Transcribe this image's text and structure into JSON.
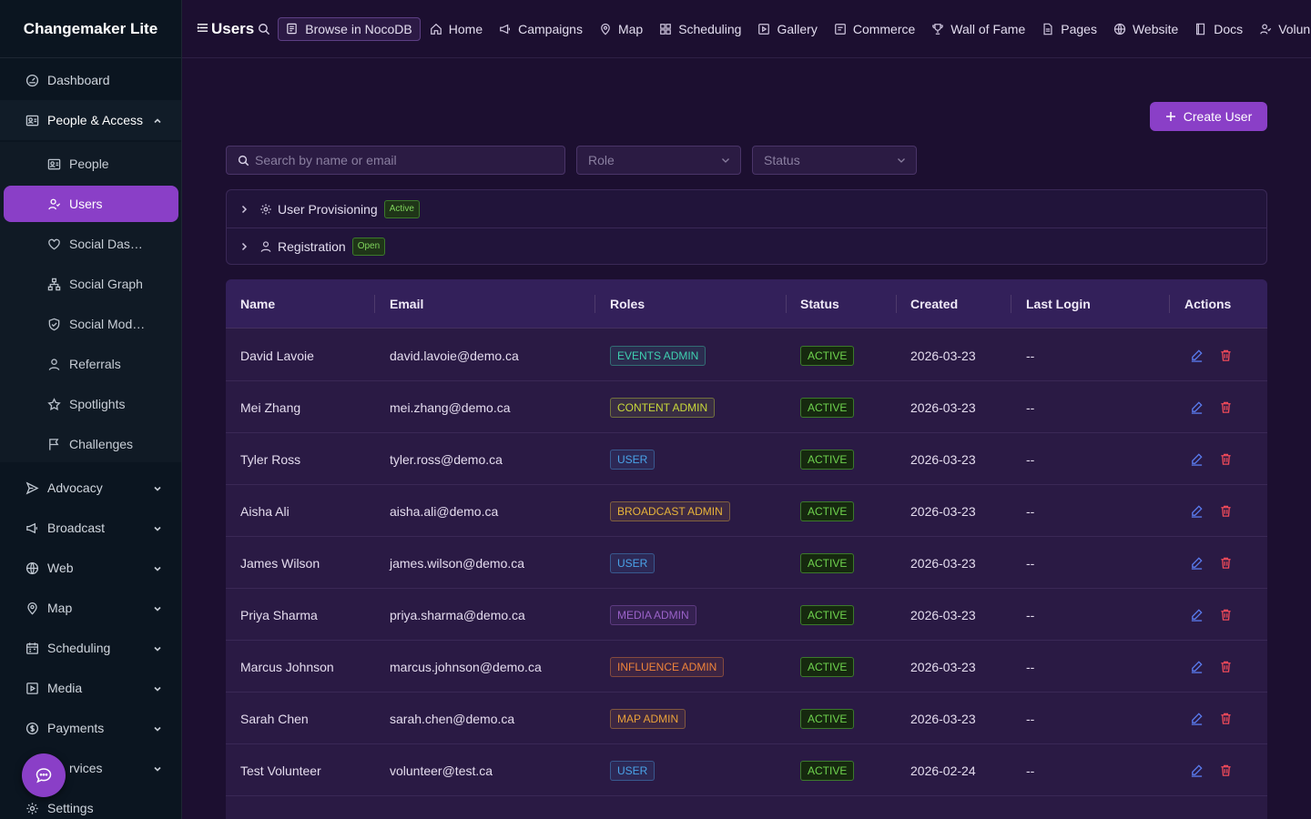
{
  "sidebar": {
    "brand": "Changemaker Lite",
    "top_items": [
      {
        "label": "Dashboard",
        "icon": "dashboard-icon"
      },
      {
        "label": "People & Access",
        "icon": "contacts-icon"
      }
    ],
    "sub_items": [
      {
        "label": "People",
        "icon": "contacts-icon"
      },
      {
        "label": "Users",
        "icon": "user-icon"
      },
      {
        "label": "Social Das…",
        "icon": "heart-icon"
      },
      {
        "label": "Social Graph",
        "icon": "graph-icon"
      },
      {
        "label": "Social Mod…",
        "icon": "shield-check-icon"
      },
      {
        "label": "Referrals",
        "icon": "user-icon"
      },
      {
        "label": "Spotlights",
        "icon": "star-icon"
      },
      {
        "label": "Challenges",
        "icon": "flag-icon"
      }
    ],
    "groups": [
      {
        "label": "Advocacy",
        "icon": "send-icon"
      },
      {
        "label": "Broadcast",
        "icon": "megaphone-icon"
      },
      {
        "label": "Web",
        "icon": "globe-icon"
      },
      {
        "label": "Map",
        "icon": "pin-icon"
      },
      {
        "label": "Scheduling",
        "icon": "calendar-icon"
      },
      {
        "label": "Media",
        "icon": "play-icon"
      },
      {
        "label": "Payments",
        "icon": "dollar-icon"
      },
      {
        "label": "rvices",
        "icon": "services-icon"
      }
    ],
    "settings": {
      "label": "Settings",
      "icon": "gear-icon"
    }
  },
  "topbar": {
    "title": "Users",
    "noco_label": "Browse in NocoDB",
    "links": [
      {
        "label": "Home",
        "icon": "home-icon"
      },
      {
        "label": "Campaigns",
        "icon": "megaphone-icon"
      },
      {
        "label": "Map",
        "icon": "pin-icon"
      },
      {
        "label": "Scheduling",
        "icon": "grid-icon"
      },
      {
        "label": "Gallery",
        "icon": "play-icon"
      },
      {
        "label": "Commerce",
        "icon": "shop-icon"
      },
      {
        "label": "Wall of Fame",
        "icon": "trophy-icon"
      },
      {
        "label": "Pages",
        "icon": "file-icon"
      },
      {
        "label": "Website",
        "icon": "globe-icon"
      },
      {
        "label": "Docs",
        "icon": "book-icon"
      },
      {
        "label": "Volun",
        "icon": "user-icon"
      }
    ]
  },
  "main": {
    "create_label": "Create User",
    "search_placeholder": "Search by name or email",
    "role_placeholder": "Role",
    "status_placeholder": "Status",
    "panels": [
      {
        "label": "User Provisioning",
        "badge": "Active",
        "icon": "gear-icon"
      },
      {
        "label": "Registration",
        "badge": "Open",
        "icon": "user-icon"
      }
    ]
  },
  "table": {
    "headers": [
      "Name",
      "Email",
      "Roles",
      "Status",
      "Created",
      "Last Login",
      "Actions"
    ],
    "rows": [
      {
        "name": "David Lavoie",
        "email": "david.lavoie@demo.ca",
        "role": "EVENTS ADMIN",
        "role_color": "#3fd0b0",
        "status": "ACTIVE",
        "created": "2026-03-23",
        "last_login": "--"
      },
      {
        "name": "Mei Zhang",
        "email": "mei.zhang@demo.ca",
        "role": "CONTENT ADMIN",
        "role_color": "#c8d83a",
        "status": "ACTIVE",
        "created": "2026-03-23",
        "last_login": "--"
      },
      {
        "name": "Tyler Ross",
        "email": "tyler.ross@demo.ca",
        "role": "USER",
        "role_color": "#4aa3e8",
        "status": "ACTIVE",
        "created": "2026-03-23",
        "last_login": "--"
      },
      {
        "name": "Aisha Ali",
        "email": "aisha.ali@demo.ca",
        "role": "BROADCAST ADMIN",
        "role_color": "#e8b43a",
        "status": "ACTIVE",
        "created": "2026-03-23",
        "last_login": "--"
      },
      {
        "name": "James Wilson",
        "email": "james.wilson@demo.ca",
        "role": "USER",
        "role_color": "#4aa3e8",
        "status": "ACTIVE",
        "created": "2026-03-23",
        "last_login": "--"
      },
      {
        "name": "Priya Sharma",
        "email": "priya.sharma@demo.ca",
        "role": "MEDIA ADMIN",
        "role_color": "#9a62c8",
        "status": "ACTIVE",
        "created": "2026-03-23",
        "last_login": "--"
      },
      {
        "name": "Marcus Johnson",
        "email": "marcus.johnson@demo.ca",
        "role": "INFLUENCE ADMIN",
        "role_color": "#f0843a",
        "status": "ACTIVE",
        "created": "2026-03-23",
        "last_login": "--"
      },
      {
        "name": "Sarah Chen",
        "email": "sarah.chen@demo.ca",
        "role": "MAP ADMIN",
        "role_color": "#e8a03a",
        "status": "ACTIVE",
        "created": "2026-03-23",
        "last_login": "--"
      },
      {
        "name": "Test Volunteer",
        "email": "volunteer@test.ca",
        "role": "USER",
        "role_color": "#4aa3e8",
        "status": "ACTIVE",
        "created": "2026-02-24",
        "last_login": "--"
      }
    ]
  },
  "colors": {
    "accent": "#8a3fc7",
    "active_green": "#6fd34e",
    "action_blue": "#5a7cf0",
    "action_red": "#f04a5a"
  }
}
